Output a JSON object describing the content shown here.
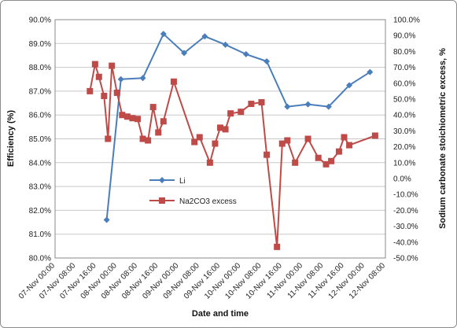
{
  "chart_data": {
    "type": "line",
    "xlabel": "Date and time",
    "ylabel_left": "Efficiency (%)",
    "ylabel_right": "Sodium carbonate stoichiometric excess, %",
    "x_ticks": [
      "07-Nov 00:00",
      "07-Nov 08:00",
      "07-Nov 16:00",
      "08-Nov 00:00",
      "08-Nov 08:00",
      "08-Nov 16:00",
      "09-Nov 00:00",
      "09-Nov 08:00",
      "09-Nov 16:00",
      "10-Nov 00:00",
      "10-Nov 08:00",
      "10-Nov 16:00",
      "11-Nov 00:00",
      "11-Nov 08:00",
      "11-Nov 16:00",
      "12-Nov 00:00",
      "12-Nov 08:00"
    ],
    "xlim": [
      "07-Nov 00:00",
      "12-Nov 08:00"
    ],
    "y_left": {
      "ylim": [
        80.0,
        90.0
      ],
      "ticks": [
        "80.0%",
        "81.0%",
        "82.0%",
        "83.0%",
        "84.0%",
        "85.0%",
        "86.0%",
        "87.0%",
        "88.0%",
        "89.0%",
        "90.0%"
      ]
    },
    "y_right": {
      "ylim": [
        -50.0,
        100.0
      ],
      "ticks": [
        "-50.0%",
        "-40.0%",
        "-30.0%",
        "-20.0%",
        "-10.0%",
        "0.0%",
        "10.0%",
        "20.0%",
        "30.0%",
        "40.0%",
        "50.0%",
        "60.0%",
        "70.0%",
        "80.0%",
        "90.0%",
        "100.0%"
      ]
    },
    "grid": "horizontal",
    "legend_position": "middle-left",
    "series": [
      {
        "name": "Li",
        "axis": "left",
        "color": "#4a7ebb",
        "marker": "diamond",
        "points": [
          {
            "x": "07-Nov 20:00",
            "y": 81.6
          },
          {
            "x": "08-Nov 01:30",
            "y": 87.5
          },
          {
            "x": "08-Nov 10:00",
            "y": 87.55
          },
          {
            "x": "08-Nov 18:00",
            "y": 89.4
          },
          {
            "x": "09-Nov 02:00",
            "y": 88.6
          },
          {
            "x": "09-Nov 10:00",
            "y": 89.3
          },
          {
            "x": "09-Nov 18:00",
            "y": 88.95
          },
          {
            "x": "10-Nov 02:00",
            "y": 88.55
          },
          {
            "x": "10-Nov 10:00",
            "y": 88.25
          },
          {
            "x": "10-Nov 18:00",
            "y": 86.35
          },
          {
            "x": "11-Nov 02:00",
            "y": 86.45
          },
          {
            "x": "11-Nov 10:00",
            "y": 86.35
          },
          {
            "x": "11-Nov 18:00",
            "y": 87.25
          },
          {
            "x": "12-Nov 02:00",
            "y": 87.8
          }
        ]
      },
      {
        "name": "Na2CO3 excess",
        "axis": "right",
        "color": "#be4b48",
        "marker": "square",
        "points": [
          {
            "x": "07-Nov 13:30",
            "y": 55.0
          },
          {
            "x": "07-Nov 15:30",
            "y": 72.0
          },
          {
            "x": "07-Nov 17:00",
            "y": 64.0
          },
          {
            "x": "07-Nov 19:00",
            "y": 52.0
          },
          {
            "x": "07-Nov 20:30",
            "y": 25.0
          },
          {
            "x": "07-Nov 22:00",
            "y": 71.0
          },
          {
            "x": "08-Nov 00:00",
            "y": 54.0
          },
          {
            "x": "08-Nov 02:00",
            "y": 40.0
          },
          {
            "x": "08-Nov 04:00",
            "y": 39.0
          },
          {
            "x": "08-Nov 06:00",
            "y": 38.0
          },
          {
            "x": "08-Nov 08:00",
            "y": 37.5
          },
          {
            "x": "08-Nov 10:00",
            "y": 25.0
          },
          {
            "x": "08-Nov 12:00",
            "y": 24.0
          },
          {
            "x": "08-Nov 14:00",
            "y": 45.0
          },
          {
            "x": "08-Nov 16:00",
            "y": 29.0
          },
          {
            "x": "08-Nov 18:00",
            "y": 36.0
          },
          {
            "x": "08-Nov 22:00",
            "y": 61.0
          },
          {
            "x": "09-Nov 06:00",
            "y": 23.0
          },
          {
            "x": "09-Nov 08:00",
            "y": 26.0
          },
          {
            "x": "09-Nov 12:00",
            "y": 10.0
          },
          {
            "x": "09-Nov 14:00",
            "y": 22.0
          },
          {
            "x": "09-Nov 16:00",
            "y": 32.0
          },
          {
            "x": "09-Nov 18:00",
            "y": 31.0
          },
          {
            "x": "09-Nov 20:00",
            "y": 41.0
          },
          {
            "x": "10-Nov 00:00",
            "y": 42.0
          },
          {
            "x": "10-Nov 04:00",
            "y": 47.0
          },
          {
            "x": "10-Nov 08:00",
            "y": 48.0
          },
          {
            "x": "10-Nov 10:00",
            "y": 15.0
          },
          {
            "x": "10-Nov 14:00",
            "y": -43.0
          },
          {
            "x": "10-Nov 16:00",
            "y": 22.0
          },
          {
            "x": "10-Nov 18:00",
            "y": 24.0
          },
          {
            "x": "10-Nov 21:00",
            "y": 10.0
          },
          {
            "x": "11-Nov 02:00",
            "y": 25.0
          },
          {
            "x": "11-Nov 06:00",
            "y": 13.0
          },
          {
            "x": "11-Nov 09:00",
            "y": 9.0
          },
          {
            "x": "11-Nov 11:00",
            "y": 11.0
          },
          {
            "x": "11-Nov 14:00",
            "y": 17.0
          },
          {
            "x": "11-Nov 16:00",
            "y": 26.0
          },
          {
            "x": "11-Nov 18:00",
            "y": 21.0
          },
          {
            "x": "12-Nov 04:00",
            "y": 27.0
          }
        ]
      }
    ]
  }
}
